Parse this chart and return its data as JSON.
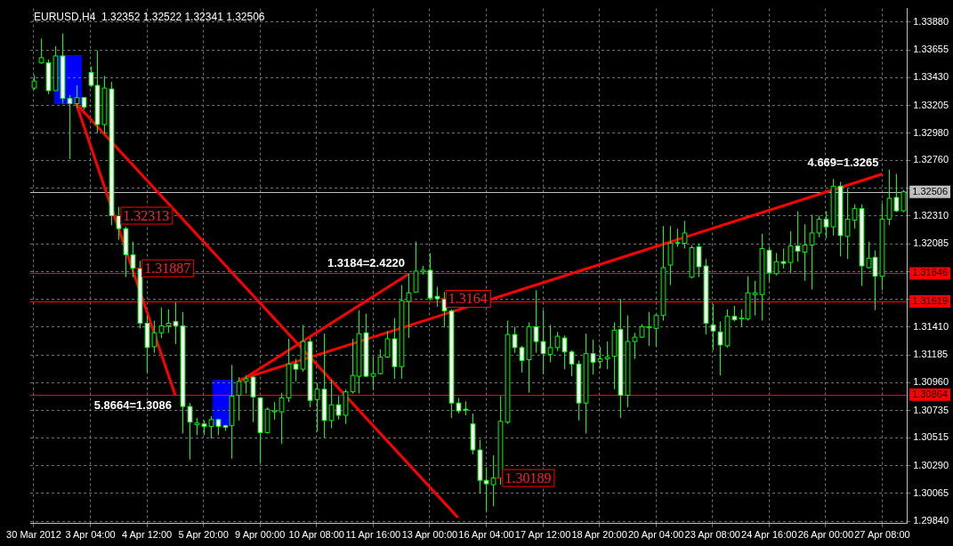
{
  "chart_data": {
    "type": "candlestick",
    "title": "EURUSD,H4  1.32352 1.32522 1.32341 1.32506",
    "marker": "none",
    "legend": false,
    "grid": true,
    "categories": [
      "30 Mar 2012",
      null,
      null,
      null,
      null,
      null,
      null,
      null,
      "3 Apr 04:00",
      null,
      null,
      null,
      null,
      null,
      null,
      null,
      "4 Apr 12:00",
      null,
      null,
      null,
      null,
      null,
      null,
      null,
      "5 Apr 20:00",
      null,
      null,
      null,
      null,
      null,
      null,
      null,
      "9 Apr 00:00",
      null,
      null,
      null,
      null,
      null,
      null,
      null,
      "10 Apr 08:00",
      null,
      null,
      null,
      null,
      null,
      null,
      null,
      "11 Apr 16:00",
      null,
      null,
      null,
      null,
      null,
      null,
      null,
      "13 Apr 00:00",
      null,
      null,
      null,
      null,
      null,
      null,
      null,
      "16 Apr 04:00",
      null,
      null,
      null,
      null,
      null,
      null,
      null,
      "17 Apr 12:00",
      null,
      null,
      null,
      null,
      null,
      null,
      null,
      "18 Apr 20:00",
      null,
      null,
      null,
      null,
      null,
      null,
      null,
      "20 Apr 04:00",
      null,
      null,
      null,
      null,
      null,
      null,
      null,
      "23 Apr 08:00",
      null,
      null,
      null,
      null,
      null,
      null,
      null,
      "24 Apr 16:00",
      null,
      null,
      null,
      null,
      null,
      null,
      null,
      "26 Apr 00:00",
      null,
      null,
      null,
      null,
      null,
      null,
      null,
      "27 Apr 08:00",
      null,
      null,
      null
    ],
    "ohlc": [
      [
        1.33346,
        1.33452,
        1.33332,
        1.33403
      ],
      [
        1.3355,
        1.33747,
        1.33543,
        1.33592
      ],
      [
        1.3355,
        1.33578,
        1.33297,
        1.33325
      ],
      [
        1.33325,
        1.33684,
        1.33325,
        1.33606
      ],
      [
        1.33606,
        1.33789,
        1.3322,
        1.33262
      ],
      [
        1.33262,
        1.3329,
        1.3277,
        1.3322
      ],
      [
        1.3322,
        1.33368,
        1.33185,
        1.33269
      ],
      [
        1.33269,
        1.33269,
        1.33171,
        1.33192
      ],
      [
        1.33473,
        1.33522,
        1.33353,
        1.33368
      ],
      [
        1.33368,
        1.33649,
        1.32981,
        1.33051
      ],
      [
        1.33051,
        1.33445,
        1.32974,
        1.33346
      ],
      [
        1.33339,
        1.33396,
        1.32236,
        1.32313
      ],
      [
        1.32313,
        1.32384,
        1.32117,
        1.32208
      ],
      [
        1.32208,
        1.32222,
        1.31815,
        1.31997
      ],
      [
        1.31997,
        1.32103,
        1.31815,
        1.31887
      ],
      [
        1.31887,
        1.31948,
        1.314,
        1.31442
      ],
      [
        1.31442,
        1.31505,
        1.31042,
        1.31245
      ],
      [
        1.31252,
        1.31463,
        1.31203,
        1.31365
      ],
      [
        1.31365,
        1.31569,
        1.31323,
        1.31421
      ],
      [
        1.31421,
        1.31555,
        1.31365,
        1.31442
      ],
      [
        1.31456,
        1.31611,
        1.31273,
        1.31421
      ],
      [
        1.31421,
        1.31533,
        1.3055,
        1.30768
      ],
      [
        1.30768,
        1.30796,
        1.30339,
        1.30641
      ],
      [
        1.3062,
        1.30676,
        1.30536,
        1.30634
      ],
      [
        1.30627,
        1.30655,
        1.30536,
        1.30606
      ],
      [
        1.30606,
        1.3069,
        1.30508,
        1.30662
      ],
      [
        1.30662,
        1.30669,
        1.30536,
        1.30606
      ],
      [
        1.30613,
        1.3062,
        1.30571,
        1.30599
      ],
      [
        1.30613,
        1.31105,
        1.30346,
        1.30852
      ],
      [
        1.30859,
        1.31006,
        1.30655,
        1.30971
      ],
      [
        1.30971,
        1.3102,
        1.30873,
        1.30992
      ],
      [
        1.31006,
        1.31013,
        1.30641,
        1.30845
      ],
      [
        1.30838,
        1.30845,
        1.30311,
        1.30557
      ],
      [
        1.30557,
        1.30761,
        1.3055,
        1.30746
      ],
      [
        1.30725,
        1.30803,
        1.30662,
        1.30732
      ],
      [
        1.30725,
        1.3088,
        1.30465,
        1.30838
      ],
      [
        1.30838,
        1.31316,
        1.30803,
        1.31112
      ],
      [
        1.31112,
        1.31154,
        1.30971,
        1.3107
      ],
      [
        1.3107,
        1.31428,
        1.31049,
        1.31294
      ],
      [
        1.31294,
        1.31323,
        1.30761,
        1.30817
      ],
      [
        1.30824,
        1.30957,
        1.30564,
        1.30908
      ],
      [
        1.30908,
        1.31358,
        1.30515,
        1.30655
      ],
      [
        1.30655,
        1.30985,
        1.30592,
        1.30782
      ],
      [
        1.30782,
        1.30852,
        1.30662,
        1.30697
      ],
      [
        1.30697,
        1.30908,
        1.30627,
        1.30887
      ],
      [
        1.30887,
        1.31316,
        1.30873,
        1.3102
      ],
      [
        1.31013,
        1.31548,
        1.30873,
        1.31358
      ],
      [
        1.31365,
        1.31519,
        1.31006,
        1.31013
      ],
      [
        1.31013,
        1.31168,
        1.30901,
        1.31034
      ],
      [
        1.31034,
        1.31231,
        1.31027,
        1.31168
      ],
      [
        1.31168,
        1.31379,
        1.31161,
        1.31316
      ],
      [
        1.31316,
        1.31484,
        1.30992,
        1.31091
      ],
      [
        1.31091,
        1.31751,
        1.30992,
        1.31625
      ],
      [
        1.31618,
        1.31843,
        1.31323,
        1.31688
      ],
      [
        1.31695,
        1.32103,
        1.31688,
        1.31864
      ],
      [
        1.31857,
        1.31906,
        1.31836,
        1.31871
      ],
      [
        1.31871,
        1.32011,
        1.31625,
        1.31646
      ],
      [
        1.3166,
        1.31737,
        1.31576,
        1.3164
      ],
      [
        1.3164,
        1.31695,
        1.31407,
        1.31541
      ],
      [
        1.31541,
        1.31555,
        1.30676,
        1.30796
      ],
      [
        1.30796,
        1.30838,
        1.30711,
        1.30732
      ],
      [
        1.30746,
        1.3081,
        1.30697,
        1.30739
      ],
      [
        1.30627,
        1.30711,
        1.30381,
        1.30416
      ],
      [
        1.30416,
        1.305,
        1.30065,
        1.3017
      ],
      [
        1.3017,
        1.30276,
        1.29917,
        1.30142
      ],
      [
        1.30135,
        1.30374,
        1.29959,
        1.30189
      ],
      [
        1.30189,
        1.30852,
        1.30135,
        1.30648
      ],
      [
        1.30641,
        1.31463,
        1.30627,
        1.31351
      ],
      [
        1.31351,
        1.31414,
        1.31203,
        1.31245
      ],
      [
        1.31245,
        1.31259,
        1.31042,
        1.3114
      ],
      [
        1.31147,
        1.31449,
        1.3088,
        1.31414
      ],
      [
        1.31414,
        1.31709,
        1.31203,
        1.31294
      ],
      [
        1.31294,
        1.31548,
        1.31028,
        1.31196
      ],
      [
        1.31189,
        1.31428,
        1.31126,
        1.31245
      ],
      [
        1.31245,
        1.31372,
        1.31217,
        1.31337
      ],
      [
        1.31323,
        1.31344,
        1.3107,
        1.3121
      ],
      [
        1.3121,
        1.31224,
        1.31013,
        1.31112
      ],
      [
        1.31112,
        1.3114,
        1.30655,
        1.30796
      ],
      [
        1.30796,
        1.31358,
        1.3055,
        1.31196
      ],
      [
        1.31196,
        1.31309,
        1.31028,
        1.31126
      ],
      [
        1.31133,
        1.31252,
        1.31077,
        1.31154
      ],
      [
        1.31154,
        1.31294,
        1.3107,
        1.31168
      ],
      [
        1.31175,
        1.31449,
        1.30908,
        1.31386
      ],
      [
        1.31393,
        1.31639,
        1.30676,
        1.30859
      ],
      [
        1.30859,
        1.31505,
        1.30761,
        1.31294
      ],
      [
        1.31294,
        1.31365,
        1.31154,
        1.3133
      ],
      [
        1.3133,
        1.31435,
        1.31323,
        1.31414
      ],
      [
        1.31407,
        1.31533,
        1.31259,
        1.31414
      ],
      [
        1.314,
        1.31519,
        1.31252,
        1.31505
      ],
      [
        1.31505,
        1.32229,
        1.31463,
        1.31892
      ],
      [
        1.31913,
        1.32229,
        1.31751,
        1.32089
      ],
      [
        1.32089,
        1.32208,
        1.32061,
        1.32096
      ],
      [
        1.32089,
        1.32271,
        1.32047,
        1.32173
      ],
      [
        1.31815,
        1.32075,
        1.31808,
        1.32054
      ],
      [
        1.32061,
        1.32089,
        1.31815,
        1.31899
      ],
      [
        1.31906,
        1.31962,
        1.31351,
        1.31442
      ],
      [
        1.31428,
        1.31597,
        1.31224,
        1.31379
      ],
      [
        1.31372,
        1.31456,
        1.3102,
        1.31266
      ],
      [
        1.31259,
        1.31555,
        1.31245,
        1.31498
      ],
      [
        1.31498,
        1.31583,
        1.31456,
        1.3147
      ],
      [
        1.31477,
        1.31555,
        1.31414,
        1.31484
      ],
      [
        1.31477,
        1.31822,
        1.31463,
        1.31688
      ],
      [
        1.31674,
        1.31786,
        1.31505,
        1.31688
      ],
      [
        1.31674,
        1.32166,
        1.31463,
        1.32047
      ],
      [
        1.32032,
        1.32061,
        1.31779,
        1.3185
      ],
      [
        1.31843,
        1.32011,
        1.31829,
        1.31941
      ],
      [
        1.31941,
        1.32047,
        1.31885,
        1.31927
      ],
      [
        1.31934,
        1.32187,
        1.3185,
        1.32068
      ],
      [
        1.32068,
        1.32349,
        1.31941,
        1.32025
      ],
      [
        1.32018,
        1.32243,
        1.31786,
        1.32075
      ],
      [
        1.32075,
        1.32321,
        1.31716,
        1.32173
      ],
      [
        1.32173,
        1.32314,
        1.32138,
        1.32285
      ],
      [
        1.32285,
        1.32349,
        1.32131,
        1.32222
      ],
      [
        1.32222,
        1.32609,
        1.32152,
        1.32552
      ],
      [
        1.32552,
        1.32587,
        1.31983,
        1.32152
      ],
      [
        1.32145,
        1.32531,
        1.31962,
        1.32285
      ],
      [
        1.32278,
        1.32405,
        1.32208,
        1.3237
      ],
      [
        1.3237,
        1.32405,
        1.31744,
        1.31906
      ],
      [
        1.31892,
        1.32103,
        1.31885,
        1.31969
      ],
      [
        1.31976,
        1.32032,
        1.31548,
        1.31822
      ],
      [
        1.31822,
        1.32412,
        1.31709,
        1.32285
      ],
      [
        1.32285,
        1.32686,
        1.32236,
        1.32454
      ],
      [
        1.32461,
        1.32651,
        1.32342,
        1.32352
      ],
      [
        1.32352,
        1.32522,
        1.32341,
        1.32506
      ]
    ],
    "value_labels": [
      null,
      null,
      null,
      null,
      null,
      null,
      null,
      null,
      null,
      null,
      null,
      "1.32313",
      null,
      null,
      "1.31887",
      null,
      null,
      null,
      null,
      null,
      null,
      null,
      null,
      null,
      null,
      null,
      null,
      null,
      null,
      null,
      null,
      null,
      null,
      null,
      null,
      null,
      null,
      null,
      null,
      null,
      null,
      null,
      null,
      null,
      null,
      null,
      null,
      null,
      null,
      null,
      null,
      null,
      null,
      null,
      null,
      null,
      null,
      "1.3164",
      null,
      null,
      null,
      null,
      null,
      null,
      null,
      "1.30189",
      null,
      null,
      null,
      null,
      null,
      null,
      null,
      null,
      null,
      null,
      null,
      null,
      null,
      null,
      null,
      null,
      null,
      null,
      null,
      null,
      null,
      null,
      null,
      null,
      null,
      null,
      null,
      null,
      null,
      null,
      null,
      null,
      null,
      null,
      null,
      null,
      null,
      null,
      null,
      null,
      null,
      null,
      null,
      null,
      null,
      null,
      null,
      null,
      null,
      null,
      null,
      null,
      null,
      null,
      null,
      null,
      null,
      null
    ],
    "series": [
      {
        "type": "line",
        "color": "#ff0000",
        "values": [
          null,
          null,
          null,
          null,
          null,
          null,
          1.3322,
          null,
          null,
          null,
          null,
          null,
          null,
          null,
          null,
          null,
          null,
          null,
          null,
          null,
          null,
          null,
          null,
          null,
          null,
          null,
          null,
          null,
          null,
          null,
          null,
          null,
          null,
          null,
          null,
          null,
          null,
          null,
          null,
          null,
          null,
          null,
          null,
          null,
          null,
          null,
          null,
          null,
          null,
          null,
          null,
          null,
          null,
          null,
          null,
          null,
          null,
          null,
          null,
          null,
          1.29868,
          null,
          null,
          null,
          null,
          null,
          null,
          null,
          null,
          null,
          null,
          null,
          null,
          null,
          null,
          null,
          null,
          null,
          null,
          null,
          null,
          null,
          null,
          null,
          null,
          null,
          null,
          null,
          null,
          null,
          null,
          null,
          null,
          null,
          null,
          null,
          null,
          null,
          null,
          null,
          null,
          null,
          null,
          null,
          null,
          null,
          null,
          null,
          null,
          null,
          null,
          null,
          null,
          null,
          null,
          null,
          null,
          null,
          null,
          null,
          null,
          null,
          null,
          null
        ]
      },
      {
        "type": "line",
        "color": "#ff0000",
        "values": [
          null,
          null,
          null,
          null,
          null,
          null,
          1.3322,
          null,
          null,
          null,
          null,
          null,
          null,
          null,
          null,
          null,
          null,
          null,
          null,
          null,
          1.3086,
          null,
          null,
          null,
          null,
          null,
          null,
          null,
          null,
          null,
          null,
          null,
          null,
          null,
          null,
          null,
          null,
          null,
          null,
          null,
          null,
          null,
          null,
          null,
          null,
          null,
          null,
          null,
          null,
          null,
          null,
          null,
          null,
          null,
          null,
          null,
          null,
          null,
          null,
          null,
          null,
          null,
          null,
          null,
          null,
          null,
          null,
          null,
          null,
          null,
          null,
          null,
          null,
          null,
          null,
          null,
          null,
          null,
          null,
          null,
          null,
          null,
          null,
          null,
          null,
          null,
          null,
          null,
          null,
          null,
          null,
          null,
          null,
          null,
          null,
          null,
          null,
          null,
          null,
          null,
          null,
          null,
          null,
          null,
          null,
          null,
          null,
          null,
          null,
          null,
          null,
          null,
          null,
          null,
          null,
          null,
          null,
          null,
          null,
          null,
          null,
          null,
          null,
          null
        ],
        "value_labels": [
          null,
          null,
          null,
          null,
          null,
          null,
          null,
          null,
          null,
          null,
          null,
          null,
          null,
          null,
          null,
          null,
          null,
          null,
          null,
          null,
          "5.8664=1.3086",
          null,
          null,
          null,
          null,
          null,
          null,
          null,
          null,
          null,
          null,
          null,
          null,
          null,
          null,
          null,
          null,
          null,
          null,
          null,
          null,
          null,
          null,
          null,
          null,
          null,
          null,
          null,
          null,
          null,
          null,
          null,
          null,
          null,
          null,
          null,
          null,
          null,
          null,
          null,
          null,
          null,
          null,
          null,
          null,
          null,
          null,
          null,
          null,
          null,
          null,
          null,
          null,
          null,
          null,
          null,
          null,
          null,
          null,
          null,
          null,
          null,
          null,
          null,
          null,
          null,
          null,
          null,
          null,
          null,
          null,
          null,
          null,
          null,
          null,
          null,
          null,
          null,
          null,
          null,
          null,
          null,
          null,
          null,
          null,
          null,
          null,
          null,
          null,
          null,
          null,
          null,
          null,
          null,
          null,
          null,
          null,
          null,
          null,
          null,
          null,
          null,
          null,
          null
        ]
      },
      {
        "type": "line",
        "color": "#ff0000",
        "values": [
          null,
          null,
          null,
          null,
          null,
          null,
          null,
          null,
          null,
          null,
          null,
          null,
          null,
          null,
          null,
          null,
          null,
          null,
          null,
          null,
          null,
          null,
          null,
          null,
          null,
          null,
          null,
          null,
          null,
          1.30967,
          null,
          null,
          null,
          null,
          null,
          null,
          null,
          null,
          null,
          null,
          null,
          null,
          null,
          null,
          null,
          null,
          null,
          null,
          null,
          null,
          null,
          null,
          null,
          1.3184,
          null,
          null,
          null,
          null,
          null,
          null,
          null,
          null,
          null,
          null,
          null,
          null,
          null,
          null,
          null,
          null,
          null,
          null,
          null,
          null,
          null,
          null,
          null,
          null,
          null,
          null,
          null,
          null,
          null,
          null,
          null,
          null,
          null,
          null,
          null,
          null,
          null,
          null,
          null,
          null,
          null,
          null,
          null,
          null,
          null,
          null,
          null,
          null,
          null,
          null,
          null,
          null,
          null,
          null,
          null,
          null,
          null,
          null,
          null,
          null,
          null,
          null,
          null,
          null,
          null,
          null,
          null,
          null,
          null,
          null
        ],
        "value_labels": [
          null,
          null,
          null,
          null,
          null,
          null,
          null,
          null,
          null,
          null,
          null,
          null,
          null,
          null,
          null,
          null,
          null,
          null,
          null,
          null,
          null,
          null,
          null,
          null,
          null,
          null,
          null,
          null,
          null,
          null,
          null,
          null,
          null,
          null,
          null,
          null,
          null,
          null,
          null,
          null,
          null,
          null,
          null,
          null,
          null,
          null,
          null,
          null,
          null,
          null,
          null,
          null,
          null,
          "1.3184=2.4220",
          null,
          null,
          null,
          null,
          null,
          null,
          null,
          null,
          null,
          null,
          null,
          null,
          null,
          null,
          null,
          null,
          null,
          null,
          null,
          null,
          null,
          null,
          null,
          null,
          null,
          null,
          null,
          null,
          null,
          null,
          null,
          null,
          null,
          null,
          null,
          null,
          null,
          null,
          null,
          null,
          null,
          null,
          null,
          null,
          null,
          null,
          null,
          null,
          null,
          null,
          null,
          null,
          null,
          null,
          null,
          null,
          null,
          null,
          null,
          null,
          null,
          null,
          null,
          null,
          null,
          null,
          null,
          null,
          null,
          null
        ]
      },
      {
        "type": "line",
        "color": "#ff0000",
        "values": [
          null,
          null,
          null,
          null,
          null,
          null,
          null,
          null,
          null,
          null,
          null,
          null,
          null,
          null,
          null,
          null,
          null,
          null,
          null,
          null,
          null,
          null,
          null,
          null,
          null,
          null,
          null,
          null,
          null,
          1.30982,
          null,
          null,
          null,
          null,
          null,
          null,
          null,
          null,
          null,
          null,
          null,
          null,
          null,
          null,
          null,
          null,
          null,
          null,
          null,
          null,
          null,
          null,
          null,
          null,
          null,
          null,
          null,
          null,
          null,
          null,
          null,
          null,
          null,
          null,
          null,
          null,
          null,
          null,
          null,
          null,
          null,
          null,
          null,
          null,
          null,
          null,
          null,
          null,
          null,
          null,
          null,
          null,
          null,
          null,
          null,
          null,
          null,
          null,
          null,
          null,
          null,
          null,
          null,
          null,
          null,
          null,
          null,
          null,
          null,
          null,
          null,
          null,
          null,
          null,
          null,
          null,
          null,
          null,
          null,
          null,
          null,
          null,
          null,
          null,
          null,
          null,
          null,
          null,
          null,
          null,
          1.3265,
          null,
          null,
          null
        ],
        "value_labels": [
          null,
          null,
          null,
          null,
          null,
          null,
          null,
          null,
          null,
          null,
          null,
          null,
          null,
          null,
          null,
          null,
          null,
          null,
          null,
          null,
          null,
          null,
          null,
          null,
          null,
          null,
          null,
          null,
          null,
          null,
          null,
          null,
          null,
          null,
          null,
          null,
          null,
          null,
          null,
          null,
          null,
          null,
          null,
          null,
          null,
          null,
          null,
          null,
          null,
          null,
          null,
          null,
          null,
          null,
          null,
          null,
          null,
          null,
          null,
          null,
          null,
          null,
          null,
          null,
          null,
          null,
          null,
          null,
          null,
          null,
          null,
          null,
          null,
          null,
          null,
          null,
          null,
          null,
          null,
          null,
          null,
          null,
          null,
          null,
          null,
          null,
          null,
          null,
          null,
          null,
          null,
          null,
          null,
          null,
          null,
          null,
          null,
          null,
          null,
          null,
          null,
          null,
          null,
          null,
          null,
          null,
          null,
          null,
          null,
          null,
          null,
          null,
          null,
          null,
          null,
          null,
          null,
          null,
          null,
          null,
          "4.669=1.3265",
          null,
          null,
          null
        ]
      }
    ],
    "ylim": [
      1.2982,
      1.3399
    ],
    "yticks": [
      {
        "value": 1.2984,
        "label": "1.29840"
      },
      {
        "value": 1.30065,
        "label": "1.30065"
      },
      {
        "value": 1.3029,
        "label": "1.30290"
      },
      {
        "value": 1.30515,
        "label": "1.30515"
      },
      {
        "value": 1.30735,
        "label": "1.30735"
      },
      {
        "value": 1.3096,
        "label": "1.30960"
      },
      {
        "value": 1.31185,
        "label": "1.31185"
      },
      {
        "value": 1.3141,
        "label": "1.31410"
      },
      {
        "value": 1.31635,
        "label": null
      },
      {
        "value": 1.3186,
        "label": null
      },
      {
        "value": 1.32085,
        "label": "1.32085"
      },
      {
        "value": 1.3231,
        "label": "1.32310"
      },
      {
        "value": 1.32535,
        "label": null
      },
      {
        "value": 1.3276,
        "label": "1.32760"
      },
      {
        "value": 1.3298,
        "label": "1.32980"
      },
      {
        "value": 1.33205,
        "label": "1.33205"
      },
      {
        "value": 1.3343,
        "label": "1.33430"
      },
      {
        "value": 1.33655,
        "label": "1.33655"
      },
      {
        "value": 1.3388,
        "label": "1.33880"
      }
    ],
    "ref_lines": [
      {
        "axis": "y",
        "value": 1.31846,
        "label": "1.31846",
        "color": "#ff0000"
      },
      {
        "axis": "y",
        "value": 1.31619,
        "label": "1.31619",
        "color": "#ff0000"
      },
      {
        "axis": "y",
        "value": 1.30864,
        "label": "1.30864",
        "color": "#ff0000"
      },
      {
        "axis": "y",
        "value": 1.32506,
        "label": "1.32506",
        "color": "#c0c0c0"
      }
    ]
  }
}
